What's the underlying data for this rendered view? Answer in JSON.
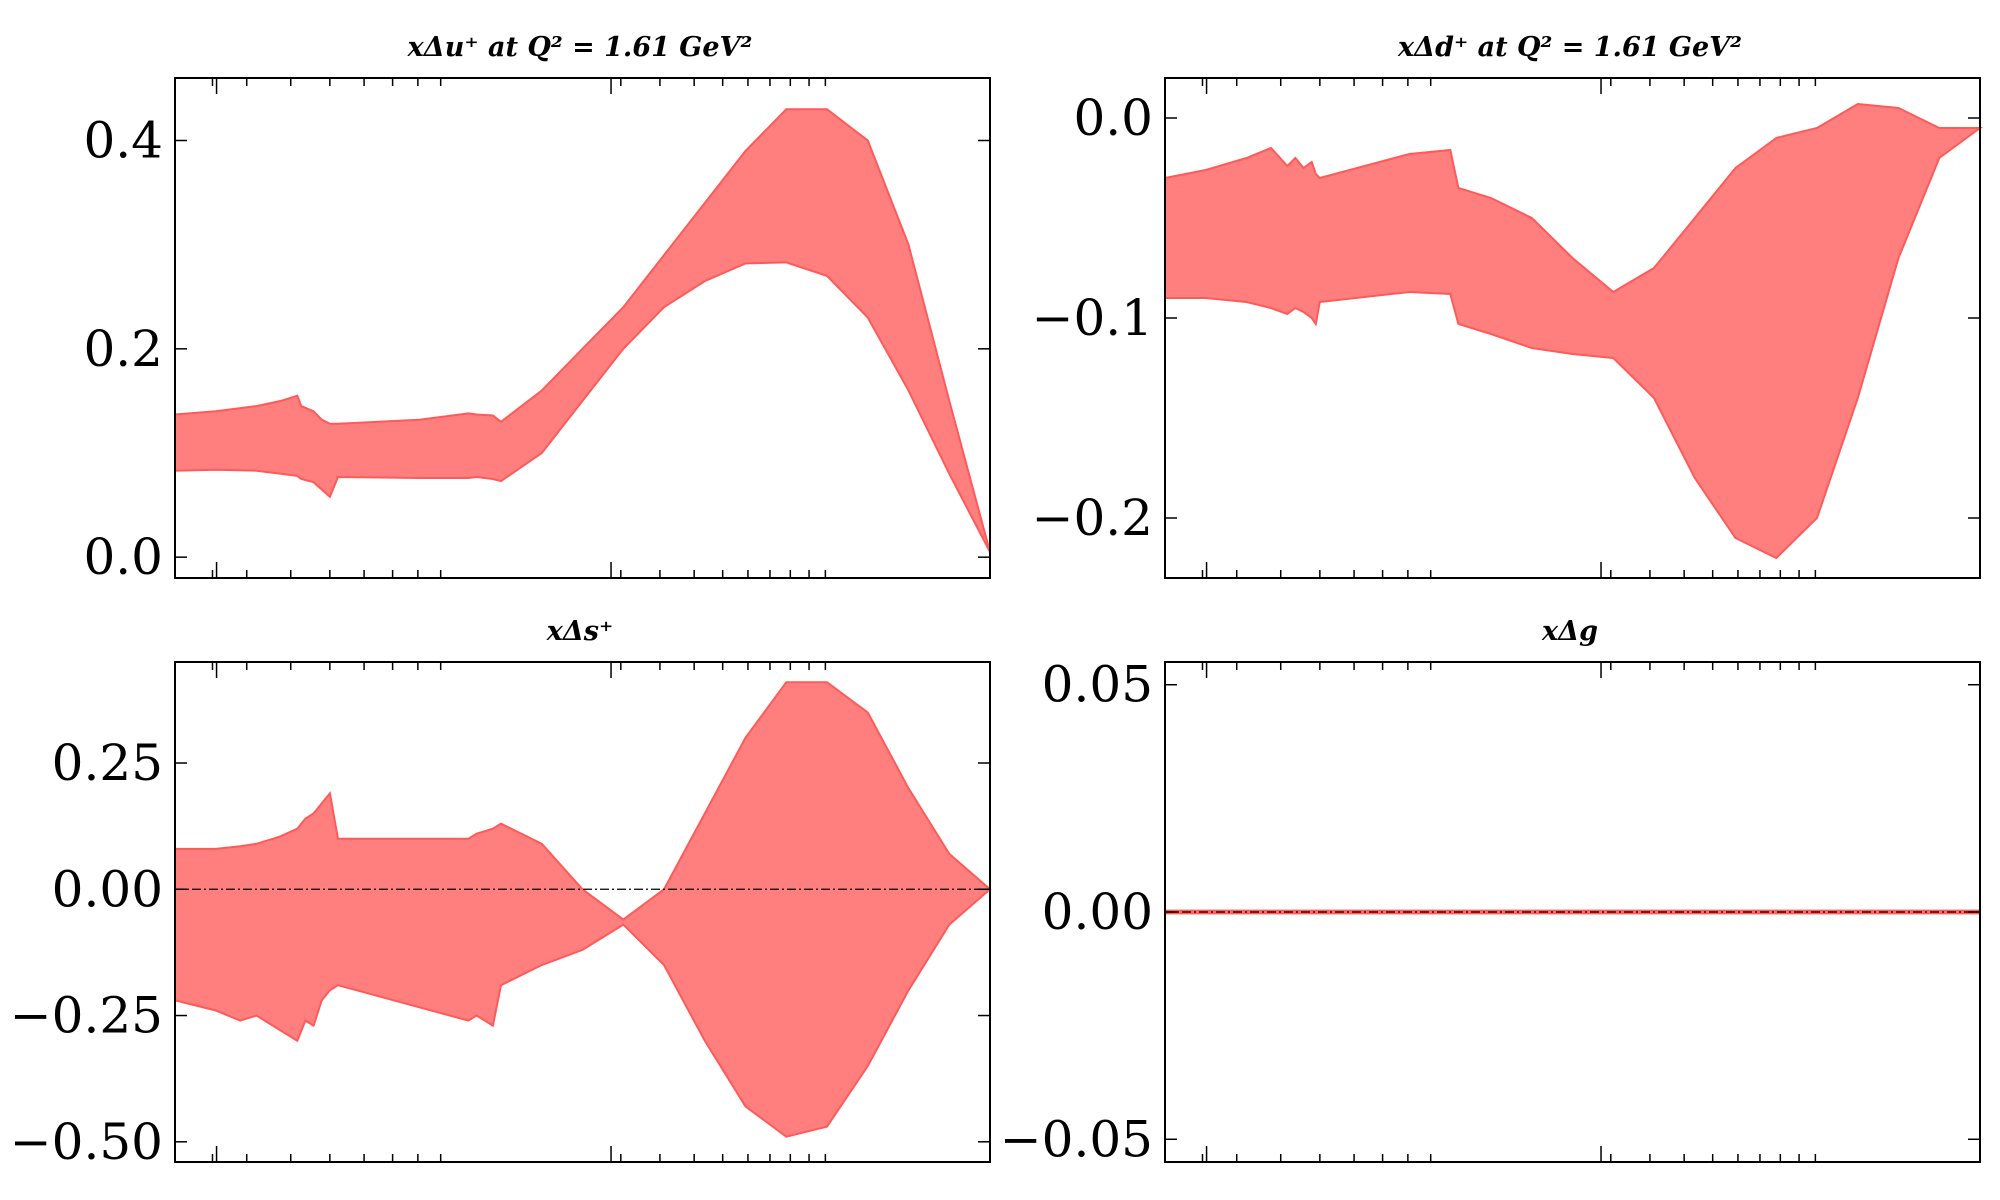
{
  "figure": {
    "accent_color": "#ff7f7f",
    "edge_color": "#ff5a5a",
    "zero_line_color": "#000000"
  },
  "chart_data": [
    {
      "type": "area",
      "title": "xΔu⁺ at Q² = 1.61 GeV²",
      "xlabel": "",
      "ylabel": "",
      "x_scale": "log",
      "x_tick_labels": [],
      "ylim": [
        -0.02,
        0.46
      ],
      "yticks": [
        0.0,
        0.2,
        0.4
      ],
      "y_tick_labels": [
        "0.0",
        "0.2",
        "0.4"
      ],
      "zero_line": false,
      "band": {
        "x": [
          0.0,
          0.05,
          0.1,
          0.13,
          0.15,
          0.155,
          0.17,
          0.18,
          0.19,
          0.2,
          0.3,
          0.36,
          0.37,
          0.39,
          0.4,
          0.45,
          0.5,
          0.55,
          0.6,
          0.65,
          0.7,
          0.75,
          0.8,
          0.85,
          0.9,
          0.95,
          1.0
        ],
        "upper": [
          0.137,
          0.14,
          0.145,
          0.15,
          0.155,
          0.145,
          0.14,
          0.132,
          0.128,
          0.128,
          0.132,
          0.138,
          0.137,
          0.136,
          0.13,
          0.16,
          0.2,
          0.24,
          0.29,
          0.34,
          0.39,
          0.43,
          0.43,
          0.4,
          0.3,
          0.15,
          0.005
        ],
        "lower": [
          0.083,
          0.084,
          0.083,
          0.08,
          0.078,
          0.075,
          0.072,
          0.065,
          0.058,
          0.077,
          0.076,
          0.076,
          0.077,
          0.075,
          0.073,
          0.1,
          0.15,
          0.2,
          0.24,
          0.265,
          0.282,
          0.283,
          0.27,
          0.23,
          0.16,
          0.08,
          0.005
        ]
      }
    },
    {
      "type": "area",
      "title": "xΔd⁺ at Q² = 1.61 GeV²",
      "xlabel": "",
      "ylabel": "",
      "x_scale": "log",
      "x_tick_labels": [],
      "ylim": [
        -0.23,
        0.02
      ],
      "yticks": [
        -0.2,
        -0.1,
        0.0
      ],
      "y_tick_labels": [
        "−0.2",
        "−0.1",
        "0.0"
      ],
      "zero_line": false,
      "band": {
        "x": [
          0.0,
          0.05,
          0.1,
          0.13,
          0.15,
          0.16,
          0.17,
          0.18,
          0.185,
          0.19,
          0.3,
          0.35,
          0.36,
          0.4,
          0.45,
          0.5,
          0.55,
          0.6,
          0.65,
          0.7,
          0.75,
          0.8,
          0.85,
          0.9,
          0.95,
          1.0
        ],
        "upper": [
          -0.03,
          -0.026,
          -0.02,
          -0.015,
          -0.024,
          -0.02,
          -0.025,
          -0.022,
          -0.028,
          -0.03,
          -0.018,
          -0.016,
          -0.035,
          -0.04,
          -0.05,
          -0.07,
          -0.087,
          -0.075,
          -0.05,
          -0.025,
          -0.01,
          -0.005,
          0.007,
          0.005,
          -0.005,
          -0.005
        ],
        "lower": [
          -0.09,
          -0.09,
          -0.092,
          -0.095,
          -0.098,
          -0.095,
          -0.097,
          -0.1,
          -0.103,
          -0.092,
          -0.087,
          -0.088,
          -0.103,
          -0.108,
          -0.115,
          -0.118,
          -0.12,
          -0.14,
          -0.18,
          -0.21,
          -0.22,
          -0.2,
          -0.14,
          -0.07,
          -0.02,
          -0.005
        ]
      }
    },
    {
      "type": "area",
      "title": "xΔs⁺",
      "xlabel": "",
      "ylabel": "",
      "x_scale": "log",
      "x_tick_labels": [],
      "ylim": [
        -0.54,
        0.45
      ],
      "yticks": [
        -0.5,
        -0.25,
        0.0,
        0.25
      ],
      "y_tick_labels": [
        "−0.50",
        "−0.25",
        "0.00",
        "0.25"
      ],
      "zero_line": true,
      "band": {
        "x": [
          0.0,
          0.05,
          0.08,
          0.1,
          0.12,
          0.13,
          0.15,
          0.16,
          0.17,
          0.18,
          0.19,
          0.2,
          0.36,
          0.37,
          0.39,
          0.4,
          0.45,
          0.5,
          0.55,
          0.6,
          0.65,
          0.7,
          0.75,
          0.8,
          0.85,
          0.9,
          0.95,
          1.0
        ],
        "upper": [
          0.08,
          0.08,
          0.085,
          0.09,
          0.1,
          0.105,
          0.12,
          0.14,
          0.15,
          0.17,
          0.19,
          0.1,
          0.1,
          0.11,
          0.12,
          0.13,
          0.09,
          0.0,
          -0.06,
          0.0,
          0.15,
          0.3,
          0.41,
          0.41,
          0.35,
          0.2,
          0.07,
          0.0
        ],
        "lower": [
          -0.22,
          -0.24,
          -0.26,
          -0.25,
          -0.27,
          -0.28,
          -0.3,
          -0.26,
          -0.27,
          -0.22,
          -0.2,
          -0.19,
          -0.26,
          -0.25,
          -0.27,
          -0.19,
          -0.15,
          -0.12,
          -0.07,
          -0.15,
          -0.3,
          -0.43,
          -0.49,
          -0.47,
          -0.35,
          -0.2,
          -0.07,
          0.0
        ]
      }
    },
    {
      "type": "area",
      "title": "xΔg",
      "xlabel": "",
      "ylabel": "",
      "x_scale": "log",
      "x_tick_labels": [],
      "ylim": [
        -0.055,
        0.055
      ],
      "yticks": [
        -0.05,
        0.0,
        0.05
      ],
      "y_tick_labels": [
        "−0.05",
        "0.00",
        "0.05"
      ],
      "zero_line": true,
      "band": {
        "x": [
          0.0,
          1.0
        ],
        "upper": [
          0.0003,
          0.0003
        ],
        "lower": [
          -0.0003,
          -0.0003
        ]
      }
    }
  ]
}
